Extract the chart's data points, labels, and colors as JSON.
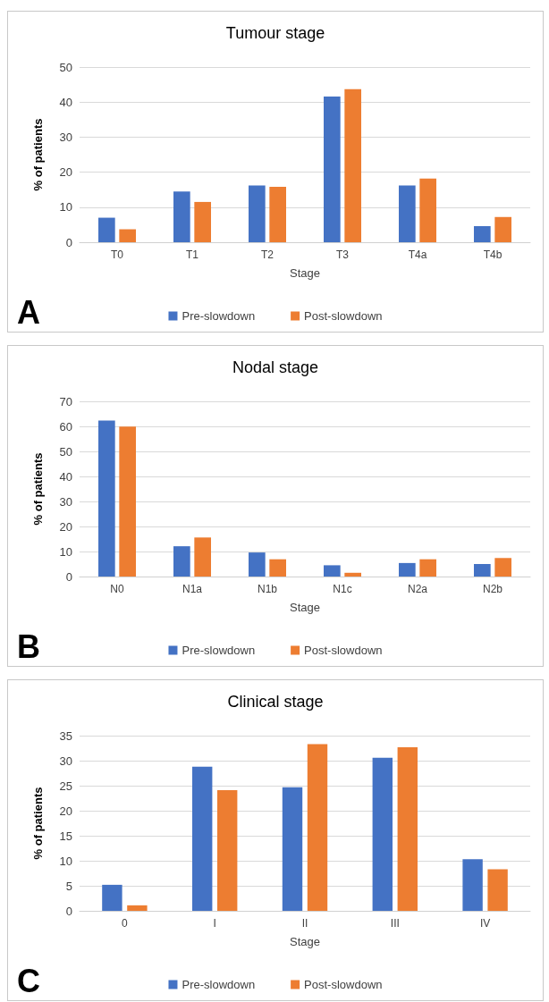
{
  "chart_data": [
    {
      "type": "bar",
      "title": "Tumour stage",
      "xlabel": "Stage",
      "ylabel": "% of patients",
      "categories": [
        "T0",
        "T1",
        "T2",
        "T3",
        "T4a",
        "T4b"
      ],
      "series": [
        {
          "name": "Pre-slowdown",
          "color": "#4472c4",
          "values": [
            7,
            14.5,
            16.2,
            41.6,
            16.2,
            4.6
          ]
        },
        {
          "name": "Post-slowdown",
          "color": "#ed7d31",
          "values": [
            3.7,
            11.5,
            15.8,
            43.7,
            18.2,
            7.2
          ]
        }
      ],
      "ylim": [
        0,
        50
      ],
      "yticks": [
        0,
        10,
        20,
        30,
        40,
        50
      ],
      "grid": "y",
      "legend": "bottom",
      "annotations": [
        "A"
      ]
    },
    {
      "type": "bar",
      "title": "Nodal stage",
      "xlabel": "Stage",
      "ylabel": "% of patients",
      "categories": [
        "N0",
        "N1a",
        "N1b",
        "N1c",
        "N2a",
        "N2b"
      ],
      "series": [
        {
          "name": "Pre-slowdown",
          "color": "#4472c4",
          "values": [
            62.3,
            12.1,
            9.6,
            4.5,
            5.4,
            5.0
          ]
        },
        {
          "name": "Post-slowdown",
          "color": "#ed7d31",
          "values": [
            59.9,
            15.6,
            6.9,
            1.5,
            6.9,
            7.4
          ]
        }
      ],
      "ylim": [
        0,
        70
      ],
      "yticks": [
        0,
        10,
        20,
        30,
        40,
        50,
        60,
        70
      ],
      "grid": "y",
      "legend": "bottom",
      "annotations": [
        "B"
      ]
    },
    {
      "type": "bar",
      "title": "Clinical stage",
      "xlabel": "Stage",
      "ylabel": "% of patients",
      "categories": [
        "0",
        "I",
        "II",
        "III",
        "IV"
      ],
      "series": [
        {
          "name": "Pre-slowdown",
          "color": "#4472c4",
          "values": [
            5.2,
            28.8,
            24.7,
            30.6,
            10.3
          ]
        },
        {
          "name": "Post-slowdown",
          "color": "#ed7d31",
          "values": [
            1.1,
            24.1,
            33.3,
            32.7,
            8.3
          ]
        }
      ],
      "ylim": [
        0,
        35
      ],
      "yticks": [
        0,
        5,
        10,
        15,
        20,
        25,
        30,
        35
      ],
      "grid": "y",
      "legend": "bottom",
      "annotations": [
        "C"
      ]
    }
  ]
}
